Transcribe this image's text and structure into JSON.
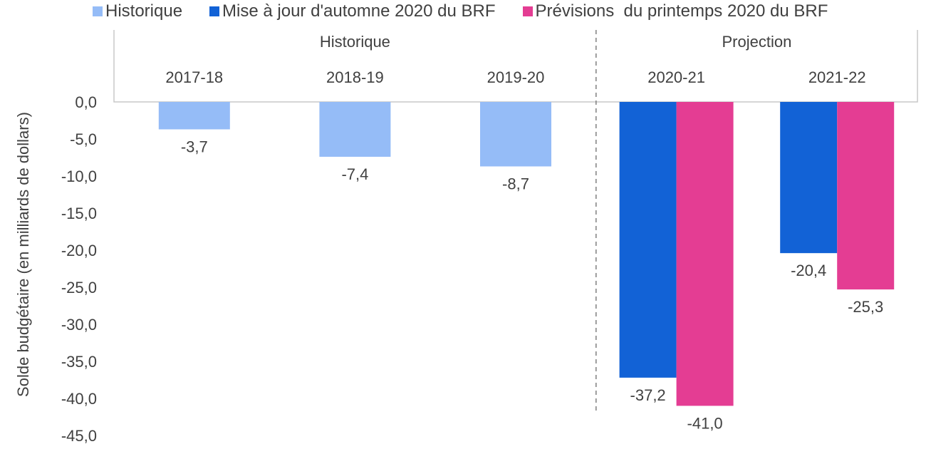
{
  "chart_data": {
    "type": "bar",
    "ylabel": "Solde budgétaire (en milliards de dollars)",
    "ylim": [
      -45,
      0
    ],
    "y_ticks": [
      "0,0",
      "-5,0",
      "-10,0",
      "-15,0",
      "-20,0",
      "-25,0",
      "-30,0",
      "-35,0",
      "-40,0",
      "-45,0"
    ],
    "groups": [
      {
        "label": "Historique",
        "categories": [
          "2017-18",
          "2018-19",
          "2019-20"
        ]
      },
      {
        "label": "Projection",
        "categories": [
          "2020-21",
          "2021-22"
        ]
      }
    ],
    "categories": [
      "2017-18",
      "2018-19",
      "2019-20",
      "2020-21",
      "2021-22"
    ],
    "series": [
      {
        "name": "Historique",
        "color": "#95BCF7",
        "values": [
          -3.7,
          -7.4,
          -8.7,
          null,
          null
        ],
        "labels": [
          "-3,7",
          "-7,4",
          "-8,7",
          "",
          ""
        ]
      },
      {
        "name": "Mise à jour d'automne 2020 du BRF",
        "color": "#1262D6",
        "values": [
          null,
          null,
          null,
          -37.2,
          -20.4
        ],
        "labels": [
          "",
          "",
          "",
          "-37,2",
          "-20,4"
        ]
      },
      {
        "name": "Prévisions  du printemps 2020 du BRF",
        "color": "#E43D93",
        "values": [
          null,
          null,
          null,
          -41.0,
          -25.3
        ],
        "labels": [
          "",
          "",
          "",
          "-41,0",
          "-25,3"
        ]
      }
    ],
    "legend_position": "top",
    "grid": false
  }
}
